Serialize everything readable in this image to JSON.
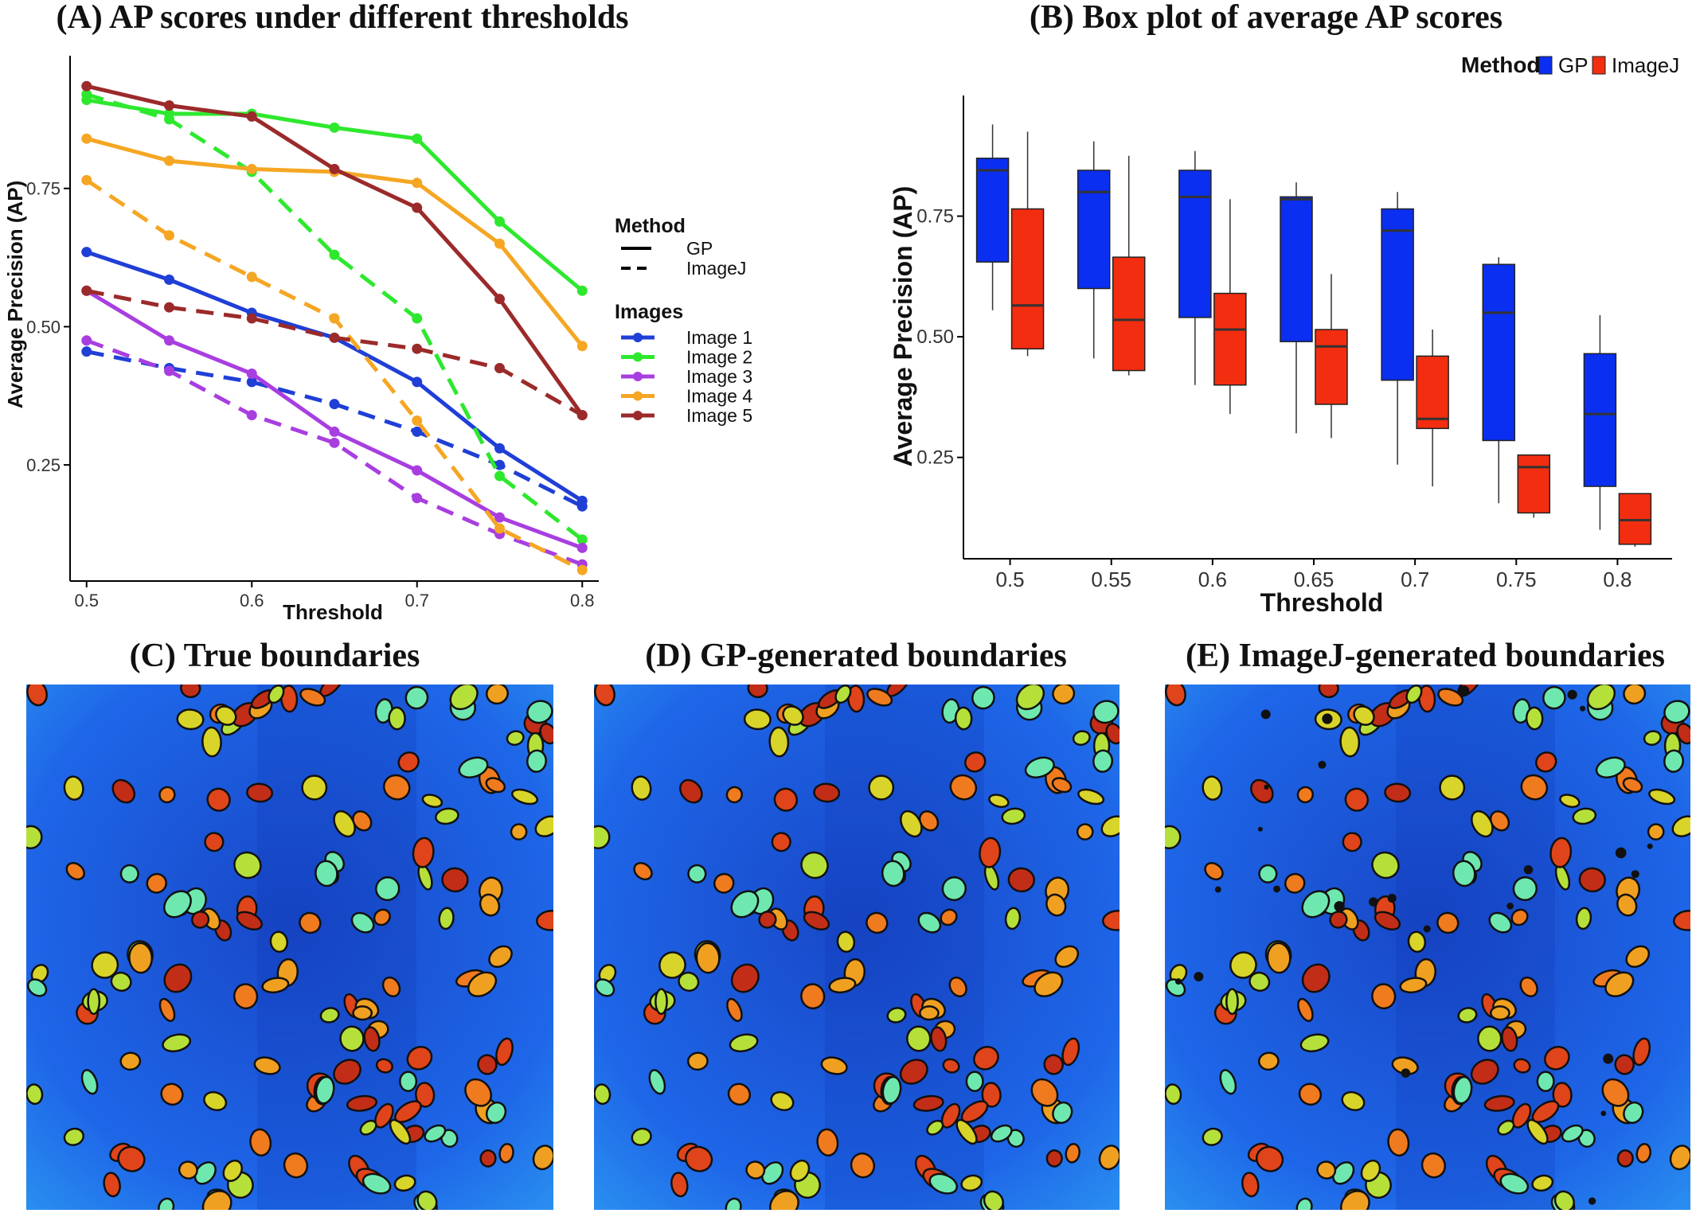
{
  "chart_data": [
    {
      "type": "line",
      "title": "(A) AP scores under different thresholds",
      "xlabel": "Threshold",
      "ylabel": "Average Precision (AP)",
      "x": [
        0.5,
        0.55,
        0.6,
        0.65,
        0.7,
        0.75,
        0.8
      ],
      "xticks": [
        "0.5",
        "0.6",
        "0.7",
        "0.8"
      ],
      "yticks": [
        "0.25",
        "0.50",
        "0.75"
      ],
      "xlim": [
        0.49,
        0.81
      ],
      "ylim": [
        0.04,
        0.99
      ],
      "legend": {
        "method_title": "Method",
        "method_entries": [
          "GP",
          "ImageJ"
        ],
        "images_title": "Images",
        "images_entries": [
          "Image 1",
          "Image 2",
          "Image 3",
          "Image 4",
          "Image 5"
        ]
      },
      "colors": {
        "Image 1": "#1f3fd6",
        "Image 2": "#2ee82e",
        "Image 3": "#a83ee0",
        "Image 4": "#f5a623",
        "Image 5": "#9b2a2a"
      },
      "series": [
        {
          "name": "Image 1",
          "method": "GP",
          "values": [
            0.635,
            0.585,
            0.525,
            0.48,
            0.4,
            0.28,
            0.185
          ]
        },
        {
          "name": "Image 1",
          "method": "ImageJ",
          "values": [
            0.455,
            0.425,
            0.4,
            0.36,
            0.31,
            0.25,
            0.175
          ]
        },
        {
          "name": "Image 2",
          "method": "GP",
          "values": [
            0.91,
            0.885,
            0.885,
            0.86,
            0.84,
            0.69,
            0.565
          ]
        },
        {
          "name": "Image 2",
          "method": "ImageJ",
          "values": [
            0.92,
            0.875,
            0.78,
            0.63,
            0.515,
            0.23,
            0.115
          ]
        },
        {
          "name": "Image 3",
          "method": "GP",
          "values": [
            0.565,
            0.475,
            0.415,
            0.31,
            0.24,
            0.155,
            0.1
          ]
        },
        {
          "name": "Image 3",
          "method": "ImageJ",
          "values": [
            0.475,
            0.42,
            0.34,
            0.29,
            0.19,
            0.125,
            0.07
          ]
        },
        {
          "name": "Image 4",
          "method": "GP",
          "values": [
            0.84,
            0.8,
            0.785,
            0.78,
            0.76,
            0.65,
            0.465
          ]
        },
        {
          "name": "Image 4",
          "method": "ImageJ",
          "values": [
            0.765,
            0.665,
            0.59,
            0.515,
            0.33,
            0.135,
            0.06
          ]
        },
        {
          "name": "Image 5",
          "method": "GP",
          "values": [
            0.935,
            0.9,
            0.88,
            0.785,
            0.715,
            0.55,
            0.34
          ]
        },
        {
          "name": "Image 5",
          "method": "ImageJ",
          "values": [
            0.565,
            0.535,
            0.515,
            0.48,
            0.46,
            0.425,
            0.34
          ]
        }
      ]
    },
    {
      "type": "box",
      "title": "(B) Box plot of average AP scores",
      "xlabel": "Threshold",
      "ylabel": "Average Precision (AP)",
      "categories": [
        "0.5",
        "0.55",
        "0.6",
        "0.65",
        "0.7",
        "0.75",
        "0.8"
      ],
      "yticks": [
        "0.25",
        "0.50",
        "0.75"
      ],
      "ylim": [
        0.04,
        1.0
      ],
      "legend": {
        "title": "Method",
        "entries": [
          "GP",
          "ImageJ"
        ],
        "position": "top-right"
      },
      "colors": {
        "GP": "#0a2ff0",
        "ImageJ": "#f22d10"
      },
      "series": [
        {
          "name": "GP",
          "boxes": [
            {
              "min": 0.555,
              "q1": 0.655,
              "median": 0.845,
              "q3": 0.87,
              "max": 0.94
            },
            {
              "min": 0.455,
              "q1": 0.6,
              "median": 0.8,
              "q3": 0.845,
              "max": 0.905
            },
            {
              "min": 0.4,
              "q1": 0.54,
              "median": 0.79,
              "q3": 0.845,
              "max": 0.885
            },
            {
              "min": 0.3,
              "q1": 0.49,
              "median": 0.785,
              "q3": 0.79,
              "max": 0.82
            },
            {
              "min": 0.235,
              "q1": 0.41,
              "median": 0.72,
              "q3": 0.765,
              "max": 0.8
            },
            {
              "min": 0.155,
              "q1": 0.285,
              "median": 0.55,
              "q3": 0.65,
              "max": 0.665
            },
            {
              "min": 0.1,
              "q1": 0.19,
              "median": 0.34,
              "q3": 0.465,
              "max": 0.545
            }
          ]
        },
        {
          "name": "ImageJ",
          "boxes": [
            {
              "min": 0.46,
              "q1": 0.475,
              "median": 0.565,
              "q3": 0.765,
              "max": 0.925
            },
            {
              "min": 0.42,
              "q1": 0.43,
              "median": 0.535,
              "q3": 0.665,
              "max": 0.875
            },
            {
              "min": 0.34,
              "q1": 0.4,
              "median": 0.515,
              "q3": 0.59,
              "max": 0.785
            },
            {
              "min": 0.29,
              "q1": 0.36,
              "median": 0.48,
              "q3": 0.515,
              "max": 0.63
            },
            {
              "min": 0.19,
              "q1": 0.31,
              "median": 0.33,
              "q3": 0.46,
              "max": 0.515
            },
            {
              "min": 0.125,
              "q1": 0.135,
              "median": 0.23,
              "q3": 0.255,
              "max": 0.255
            },
            {
              "min": 0.065,
              "q1": 0.07,
              "median": 0.12,
              "q3": 0.175,
              "max": 0.175
            }
          ]
        }
      ]
    }
  ],
  "image_panels": [
    {
      "title": "(C) True boundaries"
    },
    {
      "title": "(D) GP-generated boundaries"
    },
    {
      "title": "(E) ImageJ-generated boundaries"
    }
  ]
}
